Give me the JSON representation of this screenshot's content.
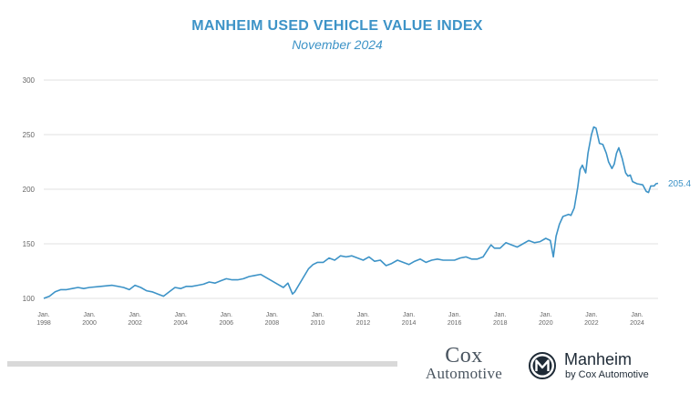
{
  "chart_data": {
    "type": "line",
    "title": "MANHEIM USED VEHICLE VALUE INDEX",
    "subtitle": "November 2024",
    "xlabel": "",
    "ylabel": "",
    "xlim": [
      1998,
      2024.92
    ],
    "ylim": [
      100,
      300
    ],
    "yticks": [
      100,
      150,
      200,
      250,
      300
    ],
    "xticks": [
      {
        "x": 1998,
        "top": "Jan",
        "bottom": "1998"
      },
      {
        "x": 2000,
        "top": "Jan",
        "bottom": "2000"
      },
      {
        "x": 2002,
        "top": "Jan",
        "bottom": "2002"
      },
      {
        "x": 2004,
        "top": "Jan",
        "bottom": "2004"
      },
      {
        "x": 2006,
        "top": "Jan",
        "bottom": "2006"
      },
      {
        "x": 2008,
        "top": "Jan",
        "bottom": "2008"
      },
      {
        "x": 2010,
        "top": "Jan",
        "bottom": "2010"
      },
      {
        "x": 2012,
        "top": "Jan",
        "bottom": "2012"
      },
      {
        "x": 2014,
        "top": "Jan",
        "bottom": "2014"
      },
      {
        "x": 2016,
        "top": "Jan",
        "bottom": "2016"
      },
      {
        "x": 2018,
        "top": "Jan",
        "bottom": "2018"
      },
      {
        "x": 2020,
        "top": "Jan",
        "bottom": "2020"
      },
      {
        "x": 2022,
        "top": "Jan",
        "bottom": "2022"
      },
      {
        "x": 2024,
        "top": "Jan",
        "bottom": "2024"
      }
    ],
    "grid": true,
    "legend": "none",
    "series": [
      {
        "color": "#3d93c7",
        "points": [
          [
            1998.0,
            100
          ],
          [
            1998.25,
            102
          ],
          [
            1998.5,
            106
          ],
          [
            1998.75,
            108
          ],
          [
            1999.0,
            108
          ],
          [
            1999.25,
            109
          ],
          [
            1999.5,
            110
          ],
          [
            1999.75,
            109
          ],
          [
            2000.0,
            110
          ],
          [
            2000.5,
            111
          ],
          [
            2001.0,
            112
          ],
          [
            2001.5,
            110
          ],
          [
            2001.75,
            108
          ],
          [
            2002.0,
            112
          ],
          [
            2002.25,
            110
          ],
          [
            2002.5,
            107
          ],
          [
            2002.75,
            106
          ],
          [
            2003.0,
            104
          ],
          [
            2003.25,
            102
          ],
          [
            2003.5,
            106
          ],
          [
            2003.75,
            110
          ],
          [
            2004.0,
            109
          ],
          [
            2004.25,
            111
          ],
          [
            2004.5,
            111
          ],
          [
            2004.75,
            112
          ],
          [
            2005.0,
            113
          ],
          [
            2005.25,
            115
          ],
          [
            2005.5,
            114
          ],
          [
            2005.75,
            116
          ],
          [
            2006.0,
            118
          ],
          [
            2006.25,
            117
          ],
          [
            2006.5,
            117
          ],
          [
            2006.75,
            118
          ],
          [
            2007.0,
            120
          ],
          [
            2007.25,
            121
          ],
          [
            2007.5,
            122
          ],
          [
            2007.75,
            119
          ],
          [
            2008.0,
            116
          ],
          [
            2008.25,
            113
          ],
          [
            2008.5,
            110
          ],
          [
            2008.7,
            114
          ],
          [
            2008.9,
            104
          ],
          [
            2009.0,
            106
          ],
          [
            2009.2,
            113
          ],
          [
            2009.4,
            120
          ],
          [
            2009.6,
            127
          ],
          [
            2009.8,
            131
          ],
          [
            2010.0,
            133
          ],
          [
            2010.25,
            133
          ],
          [
            2010.5,
            137
          ],
          [
            2010.75,
            135
          ],
          [
            2011.0,
            139
          ],
          [
            2011.25,
            138
          ],
          [
            2011.5,
            139
          ],
          [
            2011.75,
            137
          ],
          [
            2012.0,
            135
          ],
          [
            2012.25,
            138
          ],
          [
            2012.5,
            134
          ],
          [
            2012.75,
            135
          ],
          [
            2013.0,
            130
          ],
          [
            2013.25,
            132
          ],
          [
            2013.5,
            135
          ],
          [
            2013.75,
            133
          ],
          [
            2014.0,
            131
          ],
          [
            2014.25,
            134
          ],
          [
            2014.5,
            136
          ],
          [
            2014.75,
            133
          ],
          [
            2015.0,
            135
          ],
          [
            2015.25,
            136
          ],
          [
            2015.5,
            135
          ],
          [
            2015.75,
            135
          ],
          [
            2016.0,
            135
          ],
          [
            2016.25,
            137
          ],
          [
            2016.5,
            138
          ],
          [
            2016.75,
            136
          ],
          [
            2017.0,
            136
          ],
          [
            2017.25,
            138
          ],
          [
            2017.5,
            146
          ],
          [
            2017.6,
            149
          ],
          [
            2017.75,
            146
          ],
          [
            2018.0,
            146
          ],
          [
            2018.25,
            151
          ],
          [
            2018.5,
            149
          ],
          [
            2018.75,
            147
          ],
          [
            2019.0,
            150
          ],
          [
            2019.25,
            153
          ],
          [
            2019.5,
            151
          ],
          [
            2019.75,
            152
          ],
          [
            2020.0,
            155
          ],
          [
            2020.2,
            153
          ],
          [
            2020.33,
            138
          ],
          [
            2020.45,
            157
          ],
          [
            2020.6,
            168
          ],
          [
            2020.75,
            175
          ],
          [
            2021.0,
            177
          ],
          [
            2021.1,
            176
          ],
          [
            2021.25,
            183
          ],
          [
            2021.4,
            202
          ],
          [
            2021.5,
            218
          ],
          [
            2021.6,
            222
          ],
          [
            2021.75,
            215
          ],
          [
            2021.85,
            233
          ],
          [
            2022.0,
            250
          ],
          [
            2022.1,
            257
          ],
          [
            2022.2,
            256
          ],
          [
            2022.35,
            242
          ],
          [
            2022.5,
            241
          ],
          [
            2022.65,
            233
          ],
          [
            2022.75,
            225
          ],
          [
            2022.9,
            219
          ],
          [
            2023.0,
            223
          ],
          [
            2023.1,
            233
          ],
          [
            2023.2,
            238
          ],
          [
            2023.35,
            228
          ],
          [
            2023.5,
            215
          ],
          [
            2023.6,
            212
          ],
          [
            2023.7,
            213
          ],
          [
            2023.8,
            207
          ],
          [
            2024.0,
            205
          ],
          [
            2024.25,
            204
          ],
          [
            2024.4,
            198
          ],
          [
            2024.5,
            197
          ],
          [
            2024.6,
            203
          ],
          [
            2024.75,
            203
          ],
          [
            2024.83,
            205
          ],
          [
            2024.92,
            205.4
          ]
        ]
      }
    ],
    "annotations": [
      {
        "text": "205.4",
        "x": 2024.92,
        "y": 205.4
      }
    ]
  },
  "logos": {
    "cox_top": "Cox",
    "cox_bottom": "Automotive",
    "manheim_name": "Manheim",
    "manheim_by": "by Cox Automotive"
  }
}
